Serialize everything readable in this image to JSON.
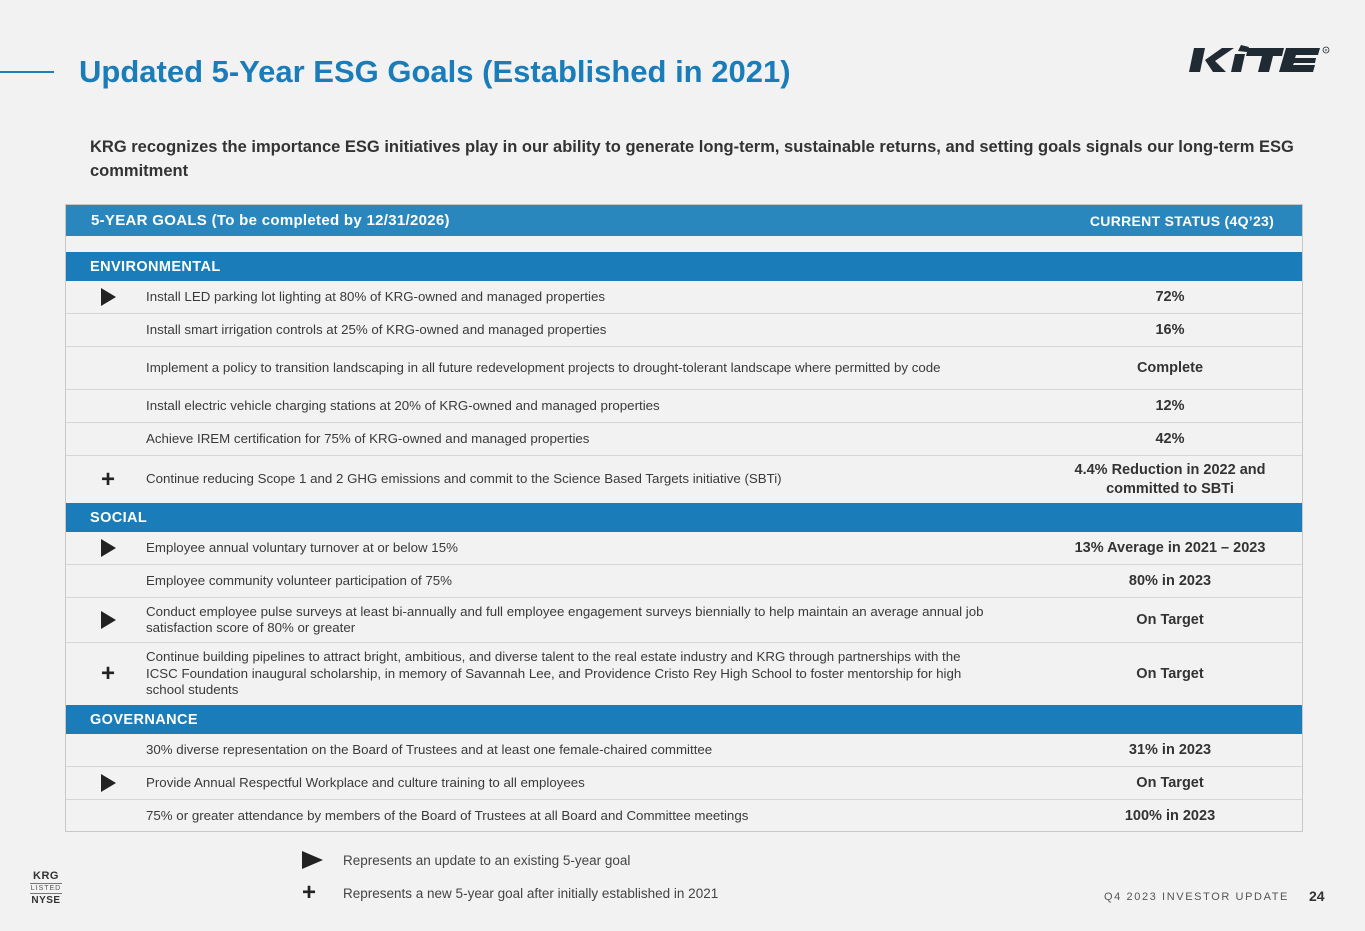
{
  "header": {
    "title": "Updated 5-Year ESG Goals (Established in 2021)",
    "logo_text": "KITE",
    "subtitle": "KRG recognizes the importance ESG initiatives play in our ability to generate long-term, sustainable returns, and setting goals signals our long-term ESG commitment"
  },
  "table": {
    "goals_header": "5-YEAR GOALS (To be completed by 12/31/2026)",
    "status_header": "CURRENT STATUS (4Q’23)",
    "sections": [
      {
        "name": "ENVIRONMENTAL",
        "rows": [
          {
            "marker": "arrow",
            "goal": "Install LED parking lot lighting at 80% of KRG-owned and managed properties",
            "status": "72%"
          },
          {
            "marker": "",
            "goal": "Install smart irrigation controls at 25% of KRG-owned and managed properties",
            "status": "16%"
          },
          {
            "marker": "",
            "goal": "Implement a policy to transition landscaping in all future redevelopment projects to drought-tolerant landscape where permitted by code",
            "status": "Complete"
          },
          {
            "marker": "",
            "goal": "Install electric vehicle charging stations at 20% of KRG-owned and managed properties",
            "status": "12%"
          },
          {
            "marker": "",
            "goal": "Achieve IREM certification for 75% of KRG-owned and managed properties",
            "status": "42%"
          },
          {
            "marker": "plus",
            "goal": "Continue reducing Scope 1 and 2 GHG emissions and commit to the Science Based Targets initiative (SBTi)",
            "status": "4.4% Reduction in 2022 and committed to SBTi"
          }
        ]
      },
      {
        "name": "SOCIAL",
        "rows": [
          {
            "marker": "arrow",
            "goal": "Employee annual voluntary turnover at or below 15%",
            "status": "13% Average in 2021 – 2023"
          },
          {
            "marker": "",
            "goal": "Employee community volunteer participation of 75%",
            "status": "80% in 2023"
          },
          {
            "marker": "arrow",
            "goal": "Conduct employee pulse surveys at least bi-annually and full employee engagement surveys biennially to help maintain an average annual job satisfaction score of 80% or greater",
            "status": "On Target"
          },
          {
            "marker": "plus",
            "goal": "Continue building pipelines to attract bright, ambitious, and diverse talent to the real estate industry and KRG through partnerships with the ICSC Foundation inaugural scholarship, in memory of Savannah Lee, and Providence Cristo Rey High School to foster mentorship for high school students",
            "status": "On Target"
          }
        ]
      },
      {
        "name": "GOVERNANCE",
        "rows": [
          {
            "marker": "",
            "goal": "30% diverse representation on the Board of Trustees and at least one female-chaired committee",
            "status": "31% in 2023"
          },
          {
            "marker": "arrow",
            "goal": "Provide Annual Respectful Workplace and culture training to all employees",
            "status": "On Target"
          },
          {
            "marker": "",
            "goal": "75% or greater attendance by members of the Board of Trustees at all Board and Committee meetings",
            "status": "100% in 2023"
          }
        ]
      }
    ]
  },
  "legend": {
    "arrow_text": "Represents an update to an existing 5-year goal",
    "plus_text": "Represents a new 5-year goal after initially established in 2021"
  },
  "footer": {
    "badge_top": "KRG",
    "badge_mid": "LISTED",
    "badge_bottom": "NYSE",
    "report": "Q4 2023 INVESTOR UPDATE",
    "page": "24"
  },
  "colors": {
    "title_blue": "#1a7db9",
    "header_blue": "#2a87bd",
    "section_blue": "#1a7db9",
    "background": "#f2f2f2"
  }
}
